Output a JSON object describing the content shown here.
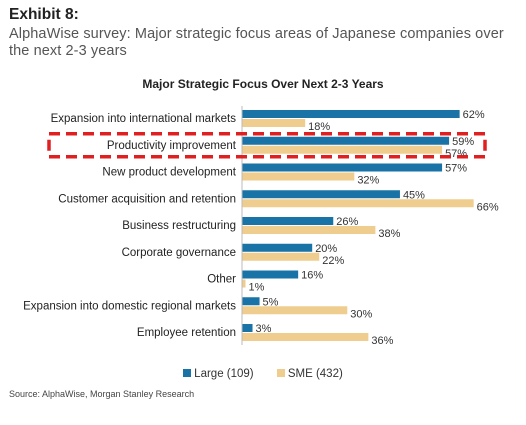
{
  "header": {
    "exhibit": "Exhibit 8:",
    "subtitle": "AlphaWise survey: Major strategic focus areas of Japanese companies over the next 2-3 years"
  },
  "chart_data": {
    "type": "bar",
    "orientation": "horizontal",
    "title": "Major Strategic Focus Over Next 2-3 Years",
    "categories": [
      "Expansion into international markets",
      "Productivity improvement",
      "New product development",
      "Customer acquisition and retention",
      "Business restructuring",
      "Corporate governance",
      "Other",
      "Expansion into domestic regional markets",
      "Employee retention"
    ],
    "series": [
      {
        "name": "Large (109)",
        "color": "#1a73a6",
        "values": [
          62,
          59,
          57,
          45,
          26,
          20,
          16,
          5,
          3
        ]
      },
      {
        "name": "SME (432)",
        "color": "#efcd8e",
        "values": [
          18,
          57,
          32,
          66,
          38,
          22,
          1,
          30,
          36
        ]
      }
    ],
    "value_suffix": "%",
    "xlim": [
      0,
      70
    ],
    "highlight_category": "Productivity improvement",
    "highlight_color": "#e02020",
    "grid": false,
    "legend_position": "bottom"
  },
  "source": "Source: AlphaWise, Morgan Stanley Research"
}
